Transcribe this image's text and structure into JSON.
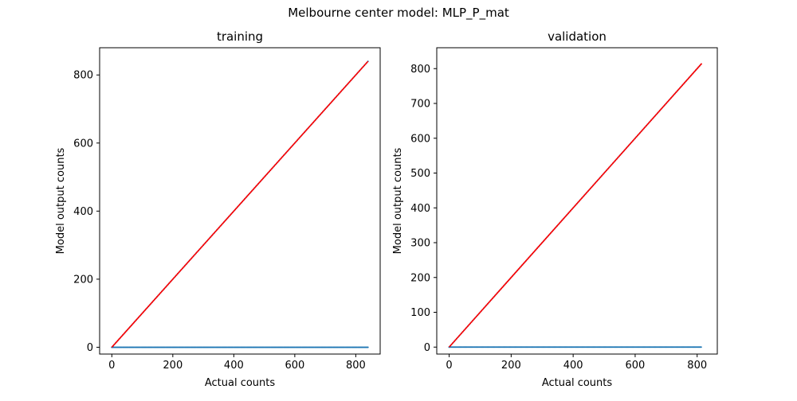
{
  "figure": {
    "suptitle": "Melbourne center model:  MLP_P_mat"
  },
  "colors": {
    "scatter": "#1f77b4",
    "fit_line": "#ff0000",
    "axes": "#000000",
    "background": "#ffffff"
  },
  "chart_data": [
    {
      "type": "scatter",
      "title": "training",
      "xlabel": "Actual counts",
      "ylabel": "Model output counts",
      "xlim": [
        -40,
        880
      ],
      "ylim": [
        -20,
        880
      ],
      "xticks": [
        0,
        200,
        400,
        600,
        800
      ],
      "yticks": [
        0,
        200,
        400,
        600,
        800
      ],
      "grid": false,
      "series": [
        {
          "kind": "scatter",
          "diagonal_points": {
            "x_start": 0,
            "x_end": 840,
            "y_equals_x": true
          },
          "zero_points": {
            "x_start": 0,
            "x_end": 840,
            "y": 0
          }
        },
        {
          "kind": "line",
          "x": [
            0,
            840
          ],
          "y": [
            0,
            840
          ]
        }
      ]
    },
    {
      "type": "scatter",
      "title": "validation",
      "xlabel": "Actual counts",
      "ylabel": "Model output counts",
      "xlim": [
        -40,
        865
      ],
      "ylim": [
        -20,
        860
      ],
      "xticks": [
        0,
        200,
        400,
        600,
        800
      ],
      "yticks": [
        0,
        100,
        200,
        300,
        400,
        500,
        600,
        700,
        800
      ],
      "grid": false,
      "series": [
        {
          "kind": "scatter",
          "diagonal_points": {
            "x_start": 0,
            "x_end": 815,
            "y_equals_x": true
          },
          "zero_points": {
            "x_start": 0,
            "x_end": 815,
            "y": 0
          }
        },
        {
          "kind": "line",
          "x": [
            0,
            815
          ],
          "y": [
            0,
            815
          ]
        }
      ]
    }
  ]
}
